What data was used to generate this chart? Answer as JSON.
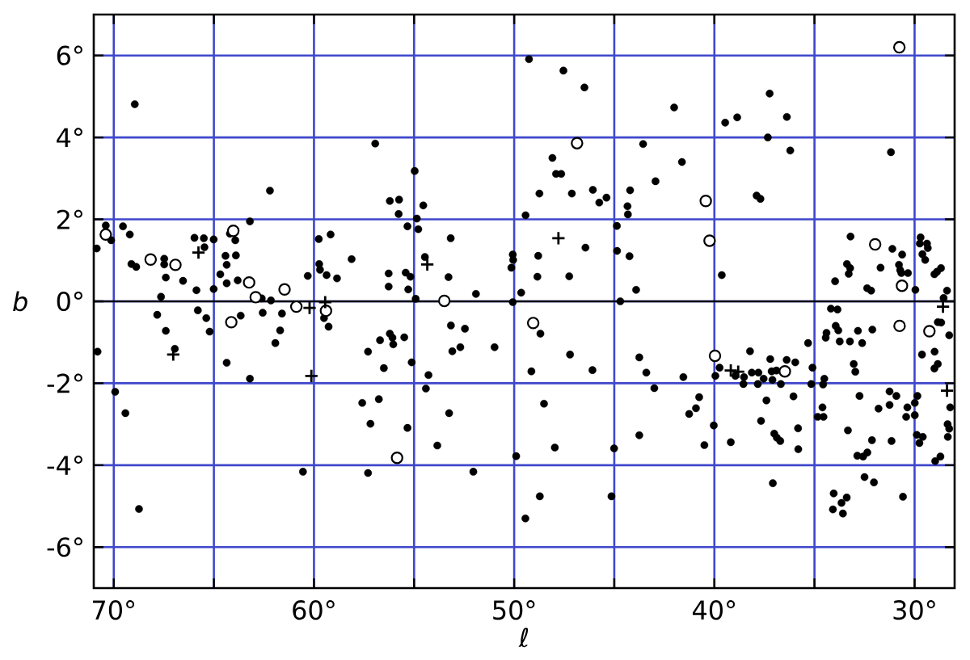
{
  "chart_data": {
    "type": "scatter",
    "xlabel": "ℓ",
    "ylabel": "b",
    "xlim": [
      71,
      28
    ],
    "ylim": [
      -7,
      7
    ],
    "xticks": [
      {
        "value": 70,
        "label": "70°"
      },
      {
        "value": 65,
        "label": null
      },
      {
        "value": 60,
        "label": "60°"
      },
      {
        "value": 55,
        "label": null
      },
      {
        "value": 50,
        "label": "50°"
      },
      {
        "value": 45,
        "label": null
      },
      {
        "value": 40,
        "label": "40°"
      },
      {
        "value": 35,
        "label": null
      },
      {
        "value": 30,
        "label": "30°"
      }
    ],
    "yticks": [
      {
        "value": -6,
        "label": "-6°"
      },
      {
        "value": -4,
        "label": "-4°"
      },
      {
        "value": -2,
        "label": "-2°"
      },
      {
        "value": 0,
        "label": "0°"
      },
      {
        "value": 2,
        "label": "2°"
      },
      {
        "value": 4,
        "label": "4°"
      },
      {
        "value": 6,
        "label": "6°"
      }
    ],
    "grid": true,
    "ref_lines": [
      {
        "axis": "y",
        "value": 0,
        "color": "#000000"
      }
    ],
    "series": [
      {
        "color": "#000000",
        "marker": "circle",
        "x": [
          70.85,
          68.95,
          62.2,
          56.94,
          70.4,
          70.13,
          69.54,
          69.2,
          69.12,
          68.88,
          67.48,
          67.48,
          67.4,
          66.54,
          67.64,
          65.97,
          65.5,
          65.47,
          65.01,
          65.87,
          65.01,
          64.68,
          64.36,
          64.42,
          64.36,
          64.2,
          63.93,
          63.9,
          63.81,
          63.2,
          62.61,
          62.15,
          60.31,
          59.76,
          59.17,
          59.74,
          59.7,
          59.37,
          58.85,
          58.12,
          70.81,
          67.83,
          67.4,
          66.95,
          65.8,
          65.38,
          65.21,
          63.66,
          64.36,
          63.2,
          62.56,
          61.6,
          61.69,
          61.93,
          59.5,
          59.27,
          69.93,
          69.42,
          68.74,
          60.55,
          57.3,
          57.59,
          57.18,
          57.3,
          49.26,
          47.54,
          46.49,
          42.01,
          43.56,
          48.09,
          47.91,
          47.65,
          42.94,
          48.74,
          47.12,
          46.07,
          45.75,
          45.39,
          44.21,
          44.34,
          44.32,
          49.43,
          54.97,
          56.21,
          55.75,
          55.77,
          54.54,
          54.86,
          55.33,
          54.79,
          53.17,
          54.46,
          56.27,
          56.27,
          55.42,
          55.18,
          55.29,
          53.28,
          51.91,
          54.92,
          50.07,
          50.05,
          50.14,
          49.65,
          48.8,
          46.44,
          48.84,
          47.25,
          44.87,
          44.86,
          44.24,
          43.91,
          44.7,
          50.07,
          56.7,
          56.21,
          56.08,
          56.04,
          55.49,
          55.12,
          56.51,
          54.28,
          54.41,
          56.76,
          55.33,
          53.25,
          53.84,
          52.04,
          53.16,
          52.46,
          53.09,
          52.69,
          50.98,
          48.69,
          49.14,
          47.21,
          46.09,
          48.51,
          49.9,
          47.97,
          48.72,
          49.44,
          45.01,
          45.14,
          43.75,
          43.4,
          43.0,
          43.75,
          37.24,
          39.46,
          38.86,
          36.38,
          37.33,
          36.21,
          41.62,
          31.18,
          37.89,
          37.7,
          39.63,
          33.2,
          31.11,
          30.62,
          33.38,
          33.22,
          33.29,
          31.7,
          33.97,
          32.37,
          32.17,
          30.78,
          30.72,
          30.66,
          30.33,
          29.96,
          29.7,
          29.74,
          29.38,
          29.34,
          29.61,
          29.47,
          29.01,
          28.88,
          28.68,
          28.38,
          28.55,
          34.18,
          33.85,
          34.4,
          34.44,
          33.94,
          33.81,
          32.83,
          32.11,
          33.74,
          33.23,
          32.62,
          28.84,
          28.67,
          28.27,
          35.32,
          29.63,
          29.0,
          28.84,
          29.01,
          33.04,
          32.96,
          35.1,
          34.51,
          34.57,
          35.16,
          38.22,
          39.74,
          39.95,
          38.95,
          38.52,
          38.55,
          38.13,
          37.8,
          37.54,
          37.83,
          37.21,
          37.14,
          36.9,
          37.1,
          36.68,
          36.39,
          35.96,
          41.55,
          40.76,
          40.92,
          41.26,
          40.03,
          40.5,
          39.18,
          37.4,
          37.67,
          36.05,
          37.01,
          36.88,
          36.71,
          35.82,
          35.81,
          37.08,
          34.6,
          34.84,
          34.55,
          32.75,
          31.8,
          31.25,
          30.91,
          31.25,
          30.36,
          30.42,
          29.86,
          29.99,
          29.99,
          33.33,
          32.13,
          31.15,
          32.86,
          32.57,
          32.36,
          29.89,
          29.59,
          29.76,
          28.22,
          28.35,
          28.27,
          28.34,
          28.71,
          28.97,
          32.5,
          32.03,
          30.58,
          34.04,
          33.39,
          33.65,
          34.08,
          33.58
        ],
        "values": [
          1.29,
          4.81,
          2.7,
          3.85,
          1.85,
          1.49,
          1.83,
          1.63,
          0.91,
          0.84,
          1.04,
          0.9,
          0.58,
          0.5,
          0.11,
          1.55,
          1.54,
          1.32,
          1.51,
          0.27,
          0.3,
          0.66,
          0.44,
          1.11,
          0.89,
          1.65,
          1.49,
          1.12,
          0.51,
          1.95,
          0.07,
          0.02,
          0.62,
          1.52,
          1.63,
          0.91,
          0.77,
          0.64,
          0.56,
          1.03,
          -1.23,
          -0.33,
          -0.72,
          -1.16,
          -0.22,
          -0.41,
          -0.74,
          -0.35,
          -1.5,
          -1.89,
          -0.28,
          -0.3,
          -0.71,
          -1.02,
          -0.41,
          -0.62,
          -2.21,
          -2.73,
          -5.07,
          -4.16,
          -1.23,
          -2.48,
          -2.99,
          -4.19,
          5.91,
          5.63,
          5.22,
          4.73,
          3.84,
          3.5,
          3.11,
          3.11,
          2.93,
          2.63,
          2.63,
          2.72,
          2.41,
          2.53,
          2.71,
          2.32,
          2.12,
          2.1,
          3.18,
          2.45,
          2.48,
          2.13,
          2.34,
          2.02,
          1.83,
          1.76,
          1.54,
          1.08,
          0.68,
          0.36,
          0.7,
          0.6,
          0.29,
          0.59,
          0.18,
          0.06,
          1.14,
          1.01,
          0.82,
          0.21,
          1.11,
          1.31,
          0.6,
          0.61,
          1.84,
          1.23,
          1.1,
          0.28,
          0.0,
          -0.02,
          -0.95,
          -0.79,
          -0.89,
          -1.05,
          -0.88,
          -1.49,
          -1.63,
          -1.8,
          -2.13,
          -2.39,
          -3.09,
          -2.73,
          -3.52,
          -4.16,
          -0.59,
          -0.67,
          -1.22,
          -1.12,
          -1.12,
          -0.79,
          -1.71,
          -1.3,
          -1.68,
          -2.5,
          -3.78,
          -3.57,
          -4.76,
          -5.3,
          -3.59,
          -4.76,
          -1.37,
          -1.74,
          -2.12,
          -3.27,
          5.07,
          4.36,
          4.49,
          4.5,
          4.0,
          3.68,
          3.4,
          3.64,
          2.58,
          2.5,
          0.64,
          1.58,
          1.28,
          1.14,
          0.91,
          0.81,
          0.67,
          0.82,
          0.49,
          0.32,
          0.26,
          0.89,
          0.76,
          0.69,
          0.69,
          0.28,
          1.56,
          1.41,
          1.41,
          1.3,
          1.15,
          1.01,
          0.66,
          0.72,
          0.81,
          0.26,
          0.08,
          -0.18,
          -0.2,
          -0.77,
          -0.89,
          -0.6,
          -0.71,
          -0.72,
          -0.69,
          -0.98,
          -0.98,
          -1.02,
          -0.51,
          -0.52,
          -0.83,
          -1.02,
          -1.3,
          -1.23,
          -1.53,
          -1.64,
          -1.53,
          -1.72,
          -1.62,
          -1.89,
          -2.03,
          -2.02,
          -1.22,
          -1.62,
          -1.82,
          -1.82,
          -1.85,
          -2.02,
          -1.74,
          -1.74,
          -1.89,
          -2.02,
          -1.41,
          -1.71,
          -1.69,
          -1.92,
          -2.02,
          -1.43,
          -1.49,
          -1.85,
          -2.34,
          -2.61,
          -2.75,
          -3.03,
          -3.51,
          -3.44,
          -2.42,
          -2.92,
          -2.32,
          -3.23,
          -3.33,
          -3.41,
          -3.1,
          -3.61,
          -4.44,
          -2.59,
          -2.82,
          -2.82,
          -2.31,
          -2.62,
          -2.2,
          -2.31,
          -2.53,
          -2.59,
          -2.82,
          -2.31,
          -2.48,
          -2.78,
          -3.15,
          -3.39,
          -3.41,
          -3.77,
          -3.79,
          -3.69,
          -3.26,
          -3.31,
          -3.46,
          -2.59,
          -3.0,
          -3.11,
          -3.31,
          -3.79,
          -3.9,
          -4.29,
          -4.42,
          -4.77,
          -4.69,
          -4.79,
          -4.92,
          -5.08,
          -5.18
        ]
      },
      {
        "color": "#ffffff",
        "marker": "circle",
        "x": [
          70.4,
          68.16,
          66.92,
          64.03,
          63.24,
          62.91,
          61.47,
          64.13,
          60.88,
          59.4,
          46.86,
          53.49,
          49.05,
          55.85,
          30.76,
          40.43,
          40.24,
          31.97,
          30.63,
          30.75,
          29.26,
          39.97,
          36.48
        ],
        "values": [
          1.63,
          1.02,
          0.89,
          1.72,
          0.46,
          0.1,
          0.29,
          -0.51,
          -0.13,
          -0.23,
          3.86,
          0.01,
          -0.53,
          -3.82,
          6.2,
          2.45,
          1.48,
          1.39,
          0.38,
          -0.6,
          -0.73,
          -1.33,
          -1.71
        ]
      },
      {
        "color": "#000000",
        "marker": "cross",
        "x": [
          65.77,
          67.03,
          60.22,
          59.44,
          60.13,
          54.34,
          47.79,
          28.58,
          39.18,
          38.81,
          28.38
        ],
        "values": [
          1.19,
          -1.3,
          -0.16,
          -0.02,
          -1.82,
          0.9,
          1.54,
          -0.13,
          -1.69,
          -1.72,
          -2.18
        ]
      }
    ]
  }
}
